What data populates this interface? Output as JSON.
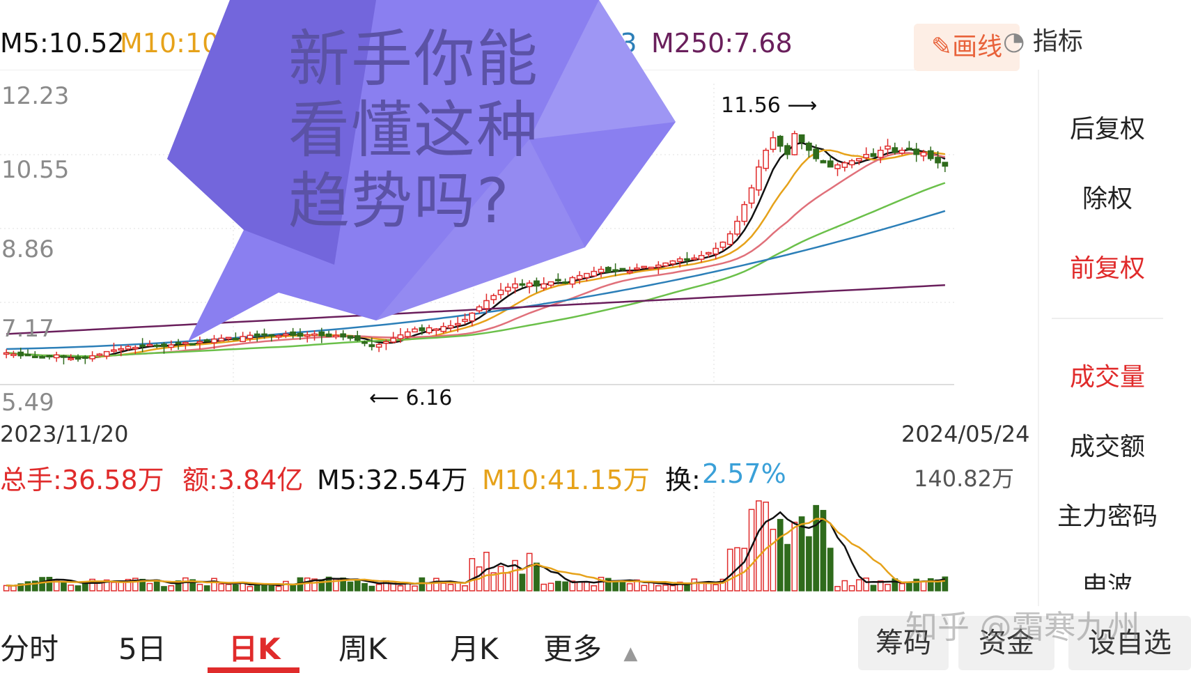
{
  "indicator_bar": {
    "m5": "M5:10.52",
    "m10": "M10:10",
    "m120": "9.43",
    "m250": "M250:7.68",
    "draw_button": "画线",
    "indicator_button": "指标"
  },
  "price_axis": [
    "12.23",
    "10.55",
    "8.86",
    "7.17",
    "5.49"
  ],
  "date_axis": {
    "start": "2023/11/20",
    "end": "2024/05/24"
  },
  "annotations": {
    "high": "11.56",
    "low": "6.16"
  },
  "volume_bar": {
    "total": "总手:36.58万",
    "amount": "额:3.84亿",
    "m5": "M5:32.54万",
    "m10": "M10:41.15万",
    "turnover_label": "换:",
    "turnover_value": "2.57%",
    "max": "140.82万"
  },
  "sidebar": {
    "items": [
      {
        "label": "后复权",
        "active": false
      },
      {
        "label": "除权",
        "active": false
      },
      {
        "label": "前复权",
        "active": true
      },
      {
        "label": "成交量",
        "active": true
      },
      {
        "label": "成交额",
        "active": false
      },
      {
        "label": "主力密码",
        "active": false
      },
      {
        "label": "申波",
        "active": false
      }
    ]
  },
  "bottom_tabs": [
    "分时",
    "5日",
    "日K",
    "周K",
    "月K",
    "更多"
  ],
  "active_tab": "日K",
  "bottom_buttons": [
    "筹码",
    "资金",
    "设自选"
  ],
  "overlay": {
    "line1": "新手你能",
    "line2": "看懂这种",
    "line3": "趋势吗?"
  },
  "watermark": "知乎 @霜寒九州",
  "colors": {
    "up": "#e02b2b",
    "down": "#2f6b1c",
    "ma5": "#111111",
    "ma10": "#e6a21a",
    "ma20": "#e0707a",
    "ma60": "#6bc04a",
    "ma120": "#2c7fb8",
    "ma250": "#6a1f5c",
    "bubble": "#8a7ff0"
  },
  "chart_data": {
    "type": "candlestick",
    "y_range": [
      5.49,
      12.23
    ],
    "closes": [
      6.05,
      6.02,
      5.98,
      6.0,
      5.96,
      5.93,
      5.97,
      6.0,
      5.95,
      5.92,
      5.9,
      5.94,
      5.98,
      6.02,
      6.08,
      6.12,
      6.15,
      6.2,
      6.18,
      6.22,
      6.25,
      6.23,
      6.2,
      6.24,
      6.28,
      6.3,
      6.27,
      6.32,
      6.35,
      6.38,
      6.4,
      6.42,
      6.38,
      6.44,
      6.47,
      6.45,
      6.5,
      6.48,
      6.46,
      6.5,
      6.47,
      6.45,
      6.48,
      6.5,
      6.46,
      6.44,
      6.47,
      6.43,
      6.4,
      6.35,
      6.3,
      6.2,
      6.25,
      6.32,
      6.4,
      6.48,
      6.55,
      6.62,
      6.58,
      6.65,
      6.62,
      6.68,
      6.7,
      6.75,
      6.85,
      7.0,
      7.15,
      7.3,
      7.42,
      7.55,
      7.62,
      7.7,
      7.68,
      7.72,
      7.65,
      7.7,
      7.75,
      7.8,
      7.72,
      7.85,
      7.9,
      7.95,
      8.0,
      8.05,
      7.98,
      8.02,
      8.05,
      8.0,
      8.08,
      8.12,
      8.1,
      8.15,
      8.2,
      8.25,
      8.3,
      8.28,
      8.32,
      8.38,
      8.45,
      8.55,
      8.7,
      8.9,
      9.2,
      9.6,
      10.0,
      10.5,
      10.9,
      11.2,
      11.0,
      10.8,
      11.3,
      11.1,
      10.9,
      10.7,
      10.6,
      10.5,
      10.55,
      10.6,
      10.65,
      10.7,
      10.8,
      10.75,
      10.9,
      11.0,
      10.85,
      10.9,
      10.95,
      10.8,
      10.85,
      10.7,
      10.6,
      10.52
    ],
    "volume_max": 140.82
  }
}
